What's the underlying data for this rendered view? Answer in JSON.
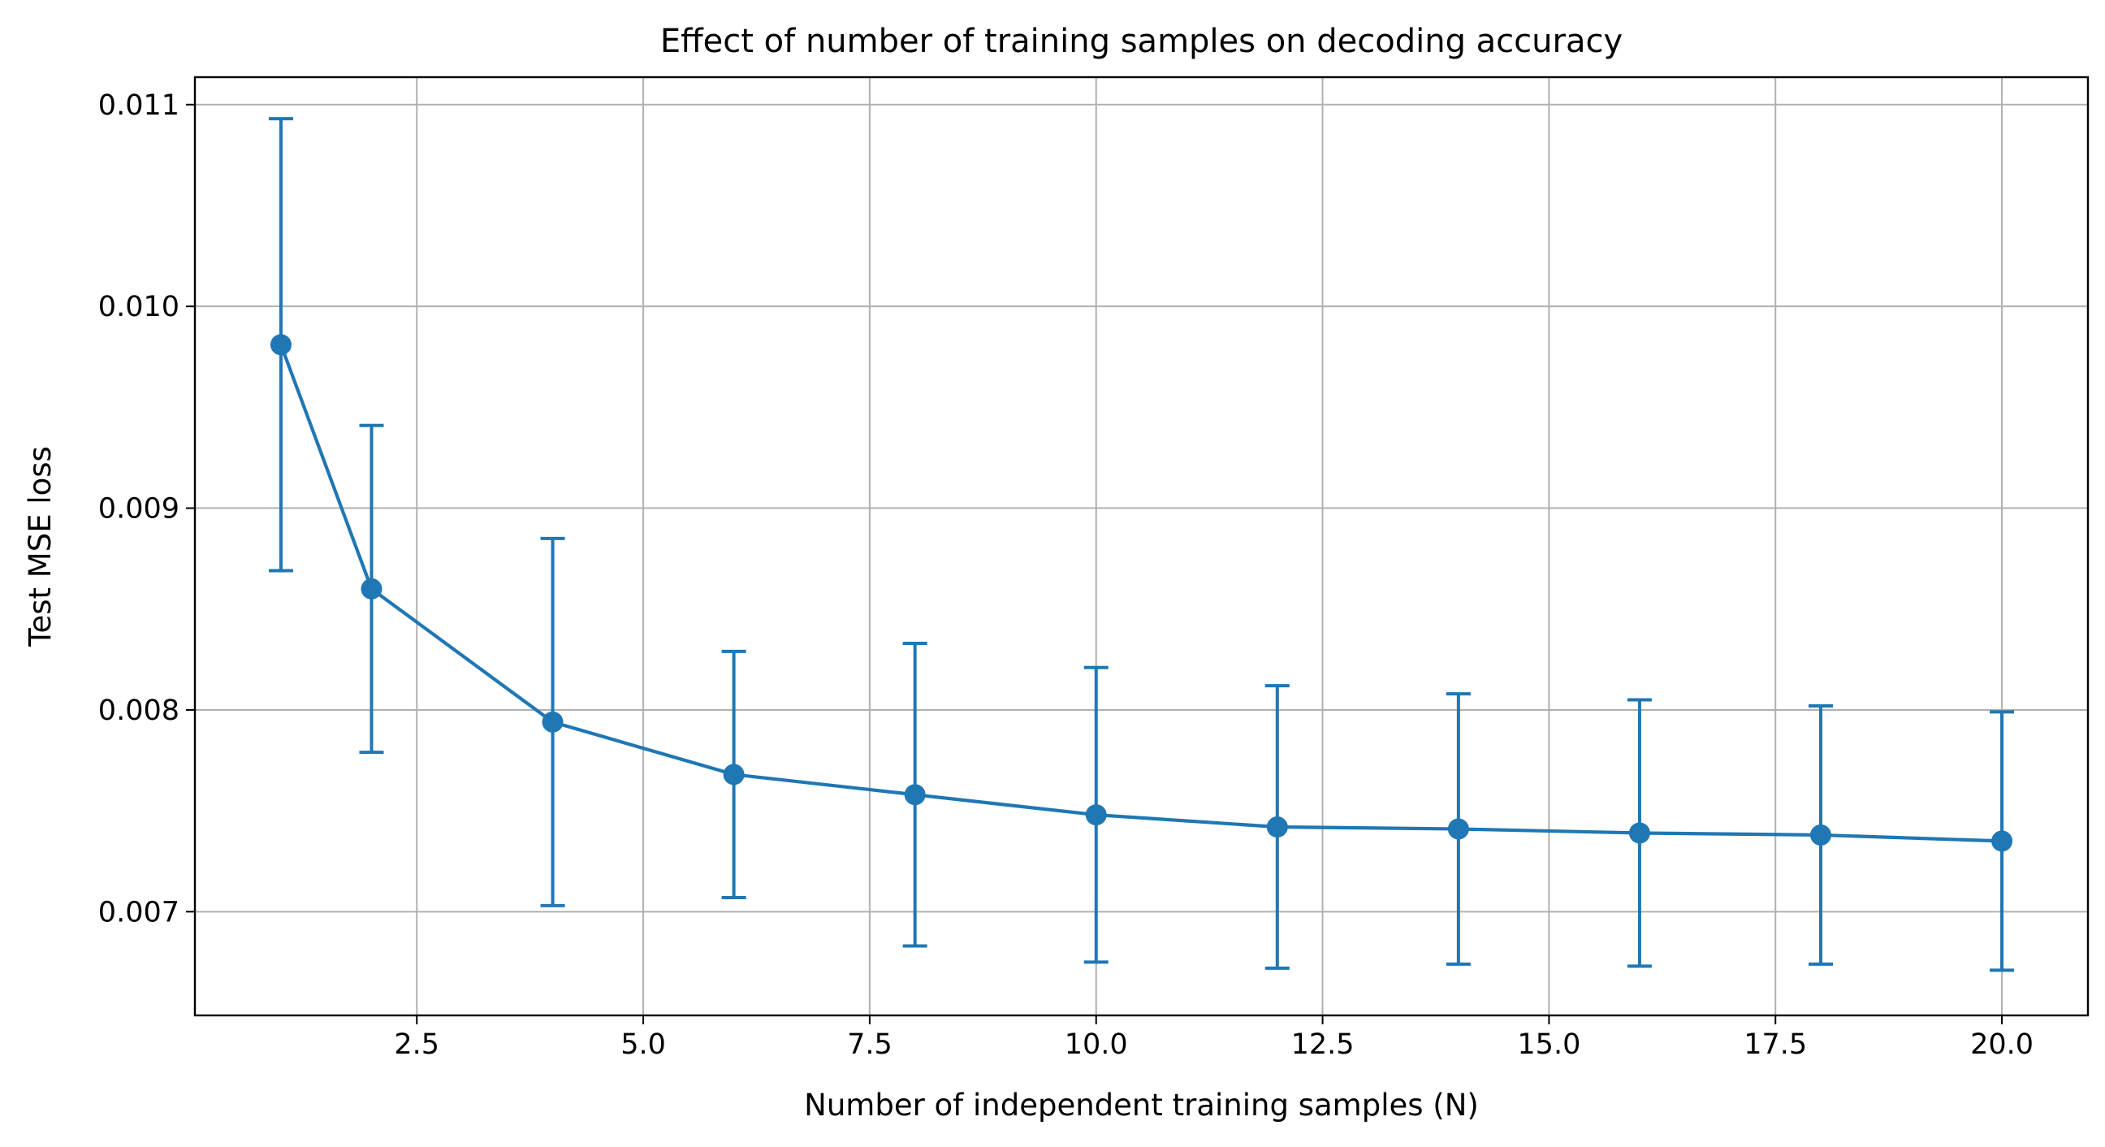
{
  "chart_data": {
    "type": "line",
    "title": "Effect of number of training samples on decoding accuracy",
    "xlabel": "Number of independent training samples (N)",
    "ylabel": "Test MSE loss",
    "xlim": [
      0.05,
      20.95
    ],
    "ylim": [
      0.006486,
      0.011136
    ],
    "grid": true,
    "x_ticks": [
      2.5,
      5.0,
      7.5,
      10.0,
      12.5,
      15.0,
      17.5,
      20.0
    ],
    "x_tick_labels": [
      "2.5",
      "5.0",
      "7.5",
      "10.0",
      "12.5",
      "15.0",
      "17.5",
      "20.0"
    ],
    "y_ticks": [
      0.007,
      0.008,
      0.009,
      0.01,
      0.011
    ],
    "y_tick_labels": [
      "0.007",
      "0.008",
      "0.009",
      "0.010",
      "0.011"
    ],
    "series": [
      {
        "color": "#1f77b4",
        "marker": "circle",
        "error_bars": true,
        "x": [
          1,
          2,
          4,
          6,
          8,
          10,
          12,
          14,
          16,
          18,
          20
        ],
        "y": [
          0.00981,
          0.0086,
          0.00794,
          0.00768,
          0.00758,
          0.00748,
          0.00742,
          0.00741,
          0.00739,
          0.00738,
          0.00735
        ],
        "err": [
          0.00112,
          0.00081,
          0.00091,
          0.00061,
          0.00075,
          0.00073,
          0.0007,
          0.00067,
          0.00066,
          0.00064,
          0.00064
        ]
      }
    ]
  }
}
